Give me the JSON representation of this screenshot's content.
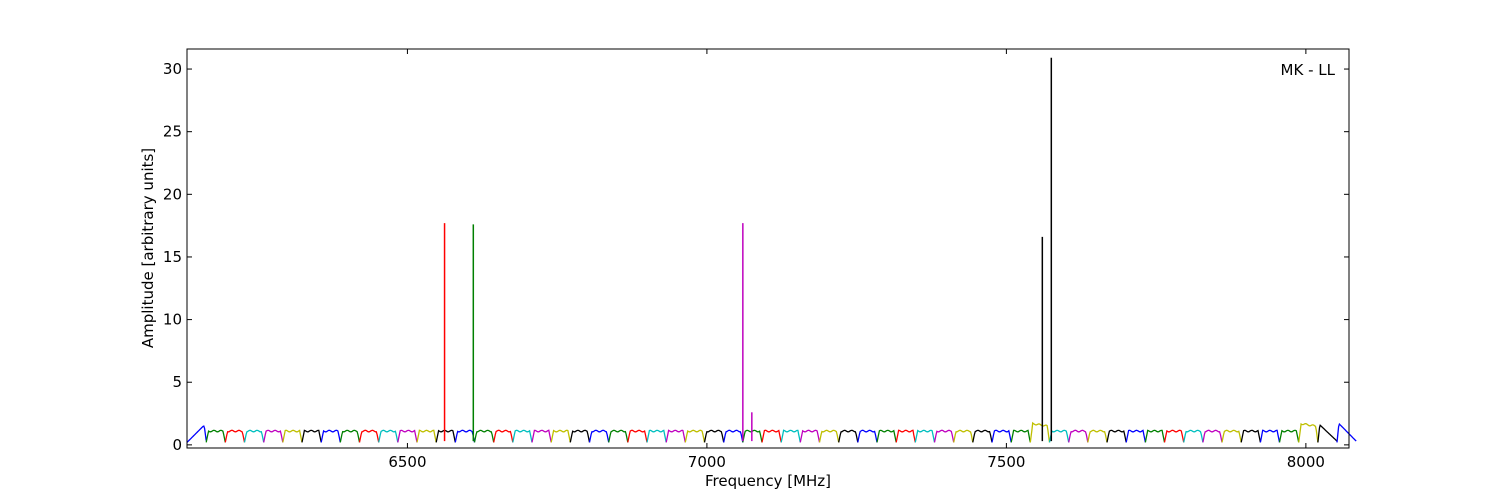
{
  "chart_data": {
    "type": "line",
    "annotation": "MK - LL",
    "xlabel": "Frequency [MHz]",
    "ylabel": "Amplitude [arbitrary units]",
    "xlim": [
      6132,
      8072
    ],
    "ylim": [
      -0.25,
      31.6
    ],
    "xticks": [
      6500,
      7000,
      7500,
      8000
    ],
    "yticks": [
      0,
      5,
      10,
      15,
      20,
      25,
      30
    ],
    "grid": false,
    "legend": "none",
    "color_cycle": [
      "#0000ff",
      "#008000",
      "#ff0000",
      "#00bfbf",
      "#bf00bf",
      "#bfbf00",
      "#000000"
    ],
    "subbands": {
      "start": 6132,
      "width_mhz": 32,
      "count": 61,
      "edge_level": 0.2,
      "plateau_level": 1.1,
      "overrides": [
        {
          "index": 0,
          "shape": "ramp",
          "peak": 1.5
        },
        {
          "index": 44,
          "color": "#bfbf00",
          "peak": 1.6
        },
        {
          "index": 58,
          "color": "#bfbf00",
          "peak": 1.6
        },
        {
          "index": 59,
          "color": "#000000",
          "shape": "ramp-down",
          "peak": 1.6
        },
        {
          "index": 60,
          "color": "#0000ff",
          "shape": "ramp-down",
          "peak": 1.7
        }
      ]
    },
    "spikes": [
      {
        "freq": 6562,
        "peak": 17.7,
        "color": "#ff0000"
      },
      {
        "freq": 6610,
        "peak": 17.6,
        "color": "#008000"
      },
      {
        "freq": 7060,
        "peak": 17.7,
        "color": "#bf00bf"
      },
      {
        "freq": 7075,
        "peak": 2.6,
        "color": "#bf00bf"
      },
      {
        "freq": 7560,
        "peak": 16.6,
        "color": "#000000"
      },
      {
        "freq": 7575,
        "peak": 30.9,
        "color": "#000000"
      }
    ]
  }
}
